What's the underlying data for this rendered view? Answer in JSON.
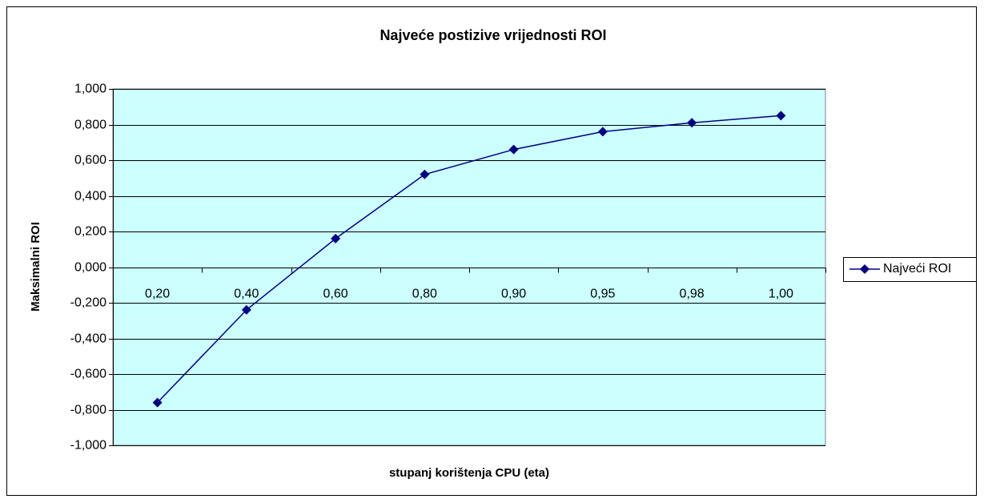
{
  "chart_data": {
    "type": "line",
    "title": "Najveće postizive vrijednosti ROI",
    "x_label": "stupanj korištenja CPU (eta)",
    "y_label": "Maksimalni ROI",
    "categories": [
      "0,20",
      "0,40",
      "0,60",
      "0,80",
      "0,90",
      "0,95",
      "0,98",
      "1,00"
    ],
    "series": [
      {
        "name": "Najveći ROI",
        "color": "#000080",
        "values": [
          -0.76,
          -0.24,
          0.16,
          0.52,
          0.66,
          0.76,
          0.81,
          0.85
        ]
      }
    ],
    "ylim": [
      -1,
      1
    ],
    "yticks": [
      {
        "value": -1,
        "label": "-1,000"
      },
      {
        "value": -0.8,
        "label": "-0,800"
      },
      {
        "value": -0.6,
        "label": "-0,600"
      },
      {
        "value": -0.4,
        "label": "-0,400"
      },
      {
        "value": -0.2,
        "label": "-0,200"
      },
      {
        "value": 0,
        "label": "0,000"
      },
      {
        "value": 0.2,
        "label": "0,200"
      },
      {
        "value": 0.4,
        "label": "0,400"
      },
      {
        "value": 0.6,
        "label": "0,600"
      },
      {
        "value": 0.8,
        "label": "0,800"
      },
      {
        "value": 1,
        "label": "1,000"
      }
    ],
    "grid": true,
    "legend": "right",
    "plot_background": "#ccffff"
  }
}
